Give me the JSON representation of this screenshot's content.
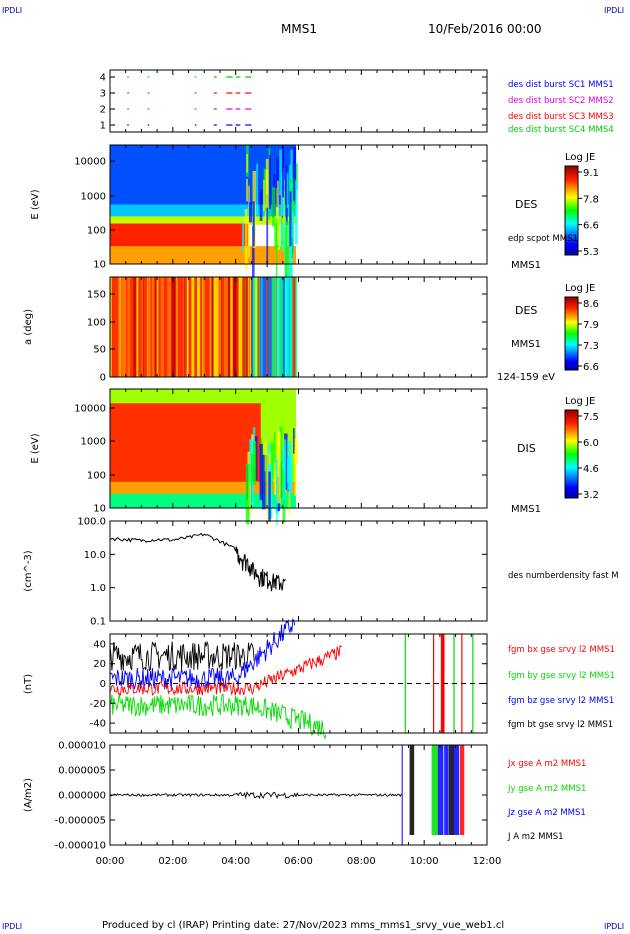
{
  "corner_labels": [
    "IPDLI",
    "IPDLI",
    "IPDLI",
    "IPDLI"
  ],
  "header": {
    "spacecraft": "MMS1",
    "date": "10/Feb/2016 00:00"
  },
  "footer": "Produced by cl (IRAP)   Printing date: 27/Nov/2023   mms_mms1_srvy_vue_web1.cl",
  "colors": {
    "mms1": "#0000ff",
    "mms2": "#dd00dd",
    "mms3": "#ff0000",
    "mms4": "#00cc00",
    "bx": "#ff0000",
    "by": "#00dd00",
    "bz": "#0000ff",
    "bt": "#000000"
  },
  "chart_data": [
    {
      "type": "scatter",
      "panel": "burst-availability",
      "y_ticks": [
        "4",
        "3",
        "2",
        "1"
      ],
      "xlim": [
        "00:00",
        "12:00"
      ],
      "series": [
        {
          "name": "des dist burst SC1 MMS1",
          "y": 1,
          "color": "#0000ff"
        },
        {
          "name": "des dist burst SC2 MMS2",
          "y": 2,
          "color": "#dd00dd"
        },
        {
          "name": "des dist burst SC3 MMS3",
          "y": 3,
          "color": "#ff0000"
        },
        {
          "name": "des dist burst SC4 MMS4",
          "y": 4,
          "color": "#00cc00"
        }
      ],
      "intervals_hours": [
        [
          0.1,
          0.14
        ],
        [
          0.55,
          0.6
        ],
        [
          1.2,
          1.25
        ],
        [
          2.7,
          2.75
        ],
        [
          3.3,
          3.4
        ],
        [
          3.7,
          3.9
        ],
        [
          4.0,
          4.15
        ],
        [
          4.3,
          4.5
        ]
      ]
    },
    {
      "type": "heatmap",
      "panel": "electron-energy-spectrogram",
      "ylabel": "E (eV)",
      "y_ticks": [
        "10000",
        "1000",
        "100",
        "10"
      ],
      "scale": "log",
      "label": "DES",
      "trace": "edp scpot MMS1",
      "sc": "MMS1",
      "colorbar": {
        "title": "Log JE",
        "ticks": [
          "9.1",
          "7.8",
          "6.6",
          "5.3"
        ]
      },
      "data_end": "05:55"
    },
    {
      "type": "heatmap",
      "panel": "electron-pitch-angle",
      "ylabel": "a (deg)",
      "y_ticks": [
        "150",
        "100",
        "50",
        "0"
      ],
      "ylim": [
        0,
        180
      ],
      "label": "DES",
      "sc": "MMS1",
      "energy_range": "124-159 eV",
      "colorbar": {
        "title": "Log JE",
        "ticks": [
          "8.6",
          "7.9",
          "7.3",
          "6.6"
        ]
      },
      "data_end": "05:55"
    },
    {
      "type": "heatmap",
      "panel": "ion-energy-spectrogram",
      "ylabel": "E (eV)",
      "y_ticks": [
        "10000",
        "1000",
        "100",
        "10"
      ],
      "scale": "log",
      "label": "DIS",
      "sc": "MMS1",
      "colorbar": {
        "title": "Log JE",
        "ticks": [
          "7.5",
          "6.0",
          "4.6",
          "3.2"
        ]
      },
      "data_end": "05:55"
    },
    {
      "type": "line",
      "panel": "electron-density",
      "ylabel": "(cm^-3)",
      "y_ticks": [
        "100.0",
        "10.0",
        "1.0",
        "0.1"
      ],
      "scale": "log",
      "ylim": [
        0.1,
        100
      ],
      "series": [
        {
          "name": "des numberdensity fast M",
          "color": "#000000",
          "x_hours": [
            0,
            0.5,
            1,
            1.5,
            2,
            2.5,
            3,
            3.5,
            4,
            4.2,
            4.4,
            4.6,
            4.8,
            5,
            5.2,
            5.4,
            5.6
          ],
          "y": [
            30,
            28,
            26,
            28,
            27,
            32,
            40,
            25,
            14,
            8,
            6,
            3,
            2.5,
            2,
            1.7,
            1.5,
            1.3
          ]
        }
      ]
    },
    {
      "type": "line",
      "panel": "magnetic-field",
      "ylabel": "(nT)",
      "y_ticks": [
        "40",
        "20",
        "0",
        "-20",
        "-40"
      ],
      "ylim": [
        -50,
        50
      ],
      "series": [
        {
          "name": "fgm bx gse srvy l2 MMS1",
          "color": "#ff0000"
        },
        {
          "name": "fgm by gse srvy l2 MMS1",
          "color": "#00dd00"
        },
        {
          "name": "fgm bz gse srvy l2 MMS1",
          "color": "#0000ff"
        },
        {
          "name": "fgm bt gse srvy l2 MMS1",
          "color": "#000000"
        }
      ]
    },
    {
      "type": "line",
      "panel": "current-density",
      "ylabel": "(A/m2)",
      "y_ticks": [
        "0.000010",
        "0.000005",
        "0.000000",
        "-0.000005",
        "-0.000010"
      ],
      "ylim": [
        -1e-05,
        1e-05
      ],
      "series": [
        {
          "name": "Jx gse A m2 MMS1",
          "color": "#ff0000"
        },
        {
          "name": "Jy gse A m2 MMS1",
          "color": "#00dd00"
        },
        {
          "name": "Jz gse A m2 MMS1",
          "color": "#0000ff"
        },
        {
          "name": "J A m2 MMS1",
          "color": "#000000"
        }
      ]
    }
  ],
  "x_ticks": [
    "00:00",
    "02:00",
    "04:00",
    "06:00",
    "08:00",
    "10:00",
    "12:00"
  ]
}
